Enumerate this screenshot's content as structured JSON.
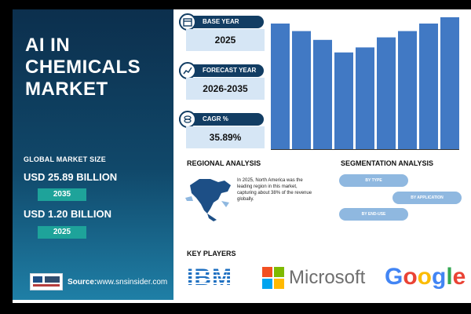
{
  "title": "AI IN CHEMICALS MARKET",
  "market": {
    "label": "GLOBAL MARKET SIZE",
    "value_2035": "USD 25.89 BILLION",
    "year_2035": "2035",
    "value_2025": "USD 1.20 BILLION",
    "year_2025": "2025"
  },
  "brand": {
    "logo_text": "S&S INSIDER Strategy & Stats",
    "source_prefix": "Source:",
    "source_url": "www.snsinsider.com"
  },
  "stats": {
    "base_year_label": "BASE YEAR",
    "base_year": "2025",
    "forecast_label": "FORECAST YEAR",
    "forecast": "2026-2035",
    "cagr_label": "CAGR %",
    "cagr": "35.89%"
  },
  "regional": {
    "heading": "REGIONAL ANALYSIS",
    "text": "In 2025, North America was the leading region in this market, capturing about 38% of the revenue globally."
  },
  "segmentation": {
    "heading": "SEGMENTATION ANALYSIS",
    "items": [
      "BY TYPE",
      "BY APPLICATION",
      "BY END-USE"
    ]
  },
  "key_players": {
    "heading": "KEY PLAYERS",
    "ibm": "IBM",
    "microsoft": "Microsoft",
    "google": "Google"
  },
  "colors": {
    "navy": "#123d63",
    "bar": "#4179c4",
    "teal": "#1ea39a",
    "ms_red": "#f25022",
    "ms_green": "#7fba00",
    "ms_blue": "#00a4ef",
    "ms_yellow": "#ffb900"
  },
  "chart_data": {
    "type": "bar",
    "values": [
      100,
      94,
      87,
      77,
      81,
      89,
      94,
      100,
      105
    ],
    "ylim": [
      0,
      105
    ],
    "grid": false
  }
}
